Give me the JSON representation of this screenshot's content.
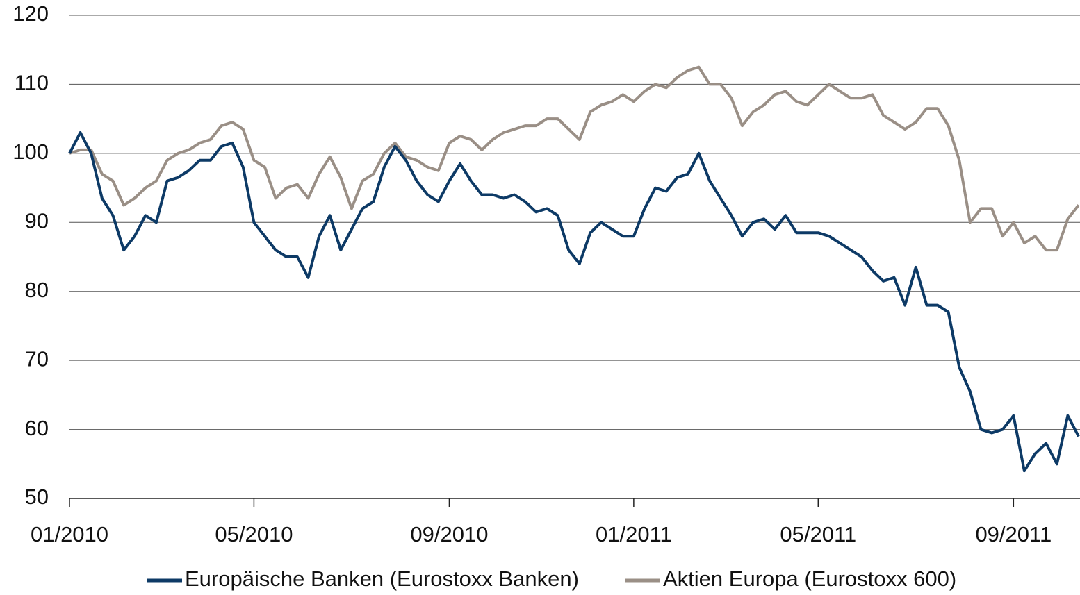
{
  "chart_data": {
    "type": "line",
    "categories": [
      "01/2010",
      null,
      null,
      null,
      null,
      null,
      null,
      null,
      null,
      null,
      null,
      null,
      null,
      null,
      null,
      null,
      null,
      "05/2010",
      null,
      null,
      null,
      null,
      null,
      null,
      null,
      null,
      null,
      null,
      null,
      null,
      null,
      null,
      null,
      null,
      null,
      "09/2010",
      null,
      null,
      null,
      null,
      null,
      null,
      null,
      null,
      null,
      null,
      null,
      null,
      null,
      null,
      null,
      null,
      "01/2011",
      null,
      null,
      null,
      null,
      null,
      null,
      null,
      null,
      null,
      null,
      null,
      null,
      null,
      null,
      null,
      null,
      "05/2011",
      null,
      null,
      null,
      null,
      null,
      null,
      null,
      null,
      null,
      null,
      null,
      null,
      null,
      null,
      null,
      null,
      null,
      "09/2011",
      null,
      null,
      null,
      null,
      null,
      null
    ],
    "series": [
      {
        "name": "Europäische Banken (Eurostoxx Banken)",
        "color": "#0d3a66",
        "values": [
          100,
          103,
          100,
          93.5,
          91,
          86,
          88,
          91,
          90,
          96,
          96.5,
          97.5,
          99,
          99,
          101,
          101.5,
          98,
          90,
          88,
          86,
          85,
          85,
          82,
          88,
          91,
          86,
          89,
          92,
          93,
          98,
          101,
          99,
          96,
          94,
          93,
          96,
          98.5,
          96,
          94,
          94,
          93.5,
          94,
          93,
          91.5,
          92,
          91,
          86,
          84,
          88.5,
          90,
          89,
          88,
          88,
          92,
          95,
          94.5,
          96.5,
          97,
          100,
          96,
          93.5,
          91,
          88,
          90,
          90.5,
          89,
          91,
          88.5,
          88.5,
          88.5,
          88,
          87,
          86,
          85,
          83,
          81.5,
          82,
          78,
          83.5,
          78,
          78,
          77,
          69,
          65.5,
          60,
          59.5,
          60,
          62,
          54,
          56.5,
          58,
          55,
          62,
          59
        ]
      },
      {
        "name": "Aktien Europa (Eurostoxx 600)",
        "color": "#9a8f86",
        "values": [
          100,
          100.5,
          100.5,
          97,
          96,
          92.5,
          93.5,
          95,
          96,
          99,
          100,
          100.5,
          101.5,
          102,
          104,
          104.5,
          103.5,
          99,
          98,
          93.5,
          95,
          95.5,
          93.5,
          97,
          99.5,
          96.5,
          92,
          96,
          97,
          100,
          101.5,
          99.5,
          99,
          98,
          97.5,
          101.5,
          102.5,
          102,
          100.5,
          102,
          103,
          103.5,
          104,
          104,
          105,
          105,
          103.5,
          102,
          106,
          107,
          107.5,
          108.5,
          107.5,
          109,
          110,
          109.5,
          111,
          112,
          112.5,
          110,
          110,
          108,
          104,
          106,
          107,
          108.5,
          109,
          107.5,
          107,
          108.5,
          110,
          109,
          108,
          108,
          108.5,
          105.5,
          104.5,
          103.5,
          104.5,
          106.5,
          106.5,
          104,
          99,
          90,
          92,
          92,
          88,
          90,
          87,
          88,
          86,
          86,
          90.5,
          92.5
        ]
      }
    ],
    "ylim": [
      50,
      120
    ],
    "yticks": [
      50,
      60,
      70,
      80,
      90,
      100,
      110,
      120
    ],
    "grid": true,
    "legend": "bottom"
  }
}
